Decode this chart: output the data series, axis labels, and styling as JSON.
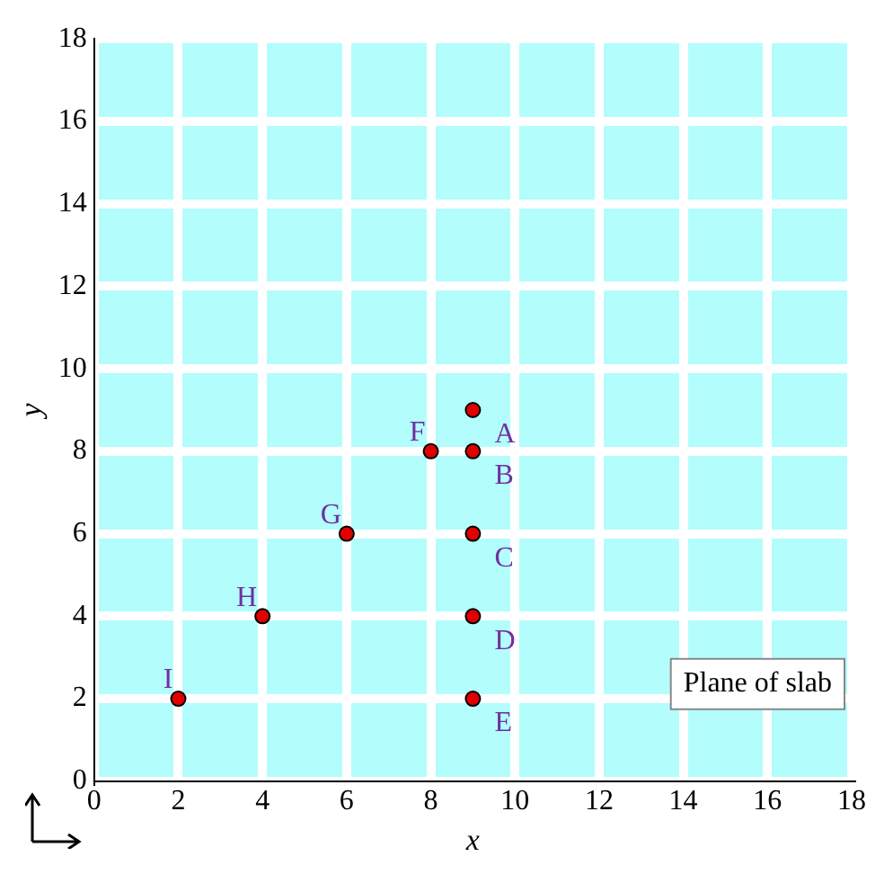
{
  "chart_data": {
    "type": "scatter",
    "xlabel": "x",
    "ylabel": "y",
    "x": [
      9,
      9,
      9,
      9,
      9,
      8,
      6,
      4,
      2
    ],
    "values": [
      9,
      8,
      6,
      4,
      2,
      8,
      6,
      4,
      2
    ],
    "color": "#e00000",
    "marker": "circle",
    "xlim": [
      0,
      18
    ],
    "ylim": [
      0,
      18
    ],
    "xticks": [
      0,
      2,
      4,
      6,
      8,
      10,
      12,
      14,
      16,
      18
    ],
    "yticks": [
      0,
      2,
      4,
      6,
      8,
      10,
      12,
      14,
      16,
      18
    ],
    "grid": true,
    "legend": false,
    "annotations": [
      {
        "text": "A",
        "x": 9,
        "y": 9
      },
      {
        "text": "B",
        "x": 9,
        "y": 8
      },
      {
        "text": "C",
        "x": 9,
        "y": 6
      },
      {
        "text": "D",
        "x": 9,
        "y": 4
      },
      {
        "text": "E",
        "x": 9,
        "y": 2
      },
      {
        "text": "F",
        "x": 8,
        "y": 8
      },
      {
        "text": "G",
        "x": 6,
        "y": 6
      },
      {
        "text": "H",
        "x": 4,
        "y": 4
      },
      {
        "text": "I",
        "x": 2,
        "y": 2
      },
      "Plane of slab"
    ]
  }
}
